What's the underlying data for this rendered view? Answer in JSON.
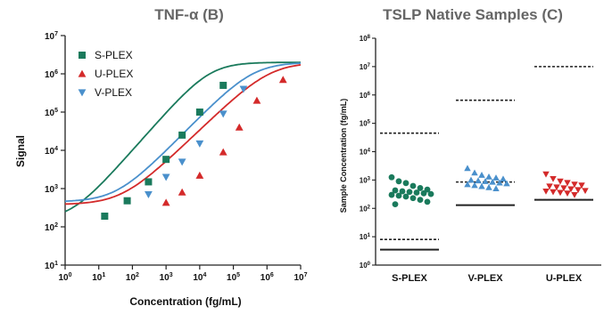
{
  "chart_data": [
    {
      "type": "line",
      "title": "TNF-α (B)",
      "xlabel": "Concentration (fg/mL)",
      "ylabel": "Signal",
      "x_scale": "log",
      "y_scale": "log",
      "xlim": [
        1,
        10000000
      ],
      "ylim": [
        10,
        10000000
      ],
      "x_ticks": [
        {
          "label": "10",
          "exp": "0",
          "value": 1
        },
        {
          "label": "10",
          "exp": "1",
          "value": 10
        },
        {
          "label": "10",
          "exp": "2",
          "value": 100
        },
        {
          "label": "10",
          "exp": "3",
          "value": 1000
        },
        {
          "label": "10",
          "exp": "4",
          "value": 10000
        },
        {
          "label": "10",
          "exp": "5",
          "value": 100000
        },
        {
          "label": "10",
          "exp": "6",
          "value": 1000000
        },
        {
          "label": "10",
          "exp": "7",
          "value": 10000000
        }
      ],
      "y_ticks": [
        {
          "label": "10",
          "exp": "1",
          "value": 10
        },
        {
          "label": "10",
          "exp": "2",
          "value": 100
        },
        {
          "label": "10",
          "exp": "3",
          "value": 1000
        },
        {
          "label": "10",
          "exp": "4",
          "value": 10000
        },
        {
          "label": "10",
          "exp": "5",
          "value": 100000
        },
        {
          "label": "10",
          "exp": "6",
          "value": 1000000
        },
        {
          "label": "10",
          "exp": "7",
          "value": 10000000
        }
      ],
      "legend_position": "top-left",
      "series": [
        {
          "name": "S-PLEX",
          "marker": "square",
          "color": "#1a7a5c",
          "x": [
            15,
            70,
            300,
            1000,
            3000,
            10000,
            50000
          ],
          "y": [
            190,
            480,
            1500,
            5800,
            25000,
            100000,
            500000
          ],
          "curve": {
            "bottom": 150,
            "top": 2000000,
            "ec50": 20000,
            "hill": 1.0
          }
        },
        {
          "name": "U-PLEX",
          "marker": "triangle-up",
          "color": "#d42a2a",
          "x": [
            1000,
            3000,
            10000,
            50000,
            150000,
            500000,
            3000000
          ],
          "y": [
            430,
            800,
            2200,
            9000,
            40000,
            200000,
            700000
          ],
          "curve": {
            "bottom": 380,
            "top": 2000000,
            "ec50": 1200000,
            "hill": 0.85
          }
        },
        {
          "name": "V-PLEX",
          "marker": "triangle-down",
          "color": "#4a90cc",
          "x": [
            300,
            1000,
            3000,
            10000,
            50000,
            200000
          ],
          "y": [
            700,
            2000,
            5000,
            15000,
            90000,
            400000
          ],
          "curve": {
            "bottom": 450,
            "top": 2000000,
            "ec50": 380000,
            "hill": 0.9
          }
        }
      ]
    },
    {
      "type": "scatter",
      "title": "TSLP Native Samples (C)",
      "xlabel": "",
      "ylabel": "Sample Concentration (fg/mL)",
      "y_scale": "log",
      "ylim": [
        1,
        100000000
      ],
      "y_ticks": [
        {
          "label": "10",
          "exp": "0",
          "value": 1
        },
        {
          "label": "10",
          "exp": "1",
          "value": 10
        },
        {
          "label": "10",
          "exp": "2",
          "value": 100
        },
        {
          "label": "10",
          "exp": "3",
          "value": 1000
        },
        {
          "label": "10",
          "exp": "4",
          "value": 10000
        },
        {
          "label": "10",
          "exp": "5",
          "value": 100000
        },
        {
          "label": "10",
          "exp": "6",
          "value": 1000000
        },
        {
          "label": "10",
          "exp": "7",
          "value": 10000000
        },
        {
          "label": "10",
          "exp": "8",
          "value": 100000000
        }
      ],
      "categories": [
        "S-PLEX",
        "V-PLEX",
        "U-PLEX"
      ],
      "groups": [
        {
          "category": "S-PLEX",
          "marker": "circle",
          "color": "#1a7a5c",
          "values": [
            1250,
            900,
            780,
            620,
            520,
            460,
            430,
            400,
            380,
            360,
            340,
            320,
            300,
            280,
            260,
            230,
            200,
            170,
            140
          ],
          "lod_solid": 3.5,
          "lloq_dashed": 8,
          "uloq_dashed": 45000
        },
        {
          "category": "V-PLEX",
          "marker": "triangle-up",
          "color": "#4a90cc",
          "values": [
            2600,
            1800,
            1500,
            1300,
            1200,
            1100,
            1000,
            950,
            900,
            850,
            800,
            750,
            700,
            650,
            600,
            550,
            500
          ],
          "lod_solid": 130,
          "lloq_dashed": 850,
          "uloq_dashed": 650000
        },
        {
          "category": "U-PLEX",
          "marker": "triangle-down",
          "color": "#d42a2a",
          "values": [
            1600,
            1100,
            900,
            800,
            700,
            650,
            600,
            560,
            520,
            480,
            450,
            420,
            400,
            380,
            360,
            340,
            300
          ],
          "lod_solid": 200,
          "lloq_dashed": 200,
          "uloq_dashed": 10000000
        }
      ]
    }
  ]
}
